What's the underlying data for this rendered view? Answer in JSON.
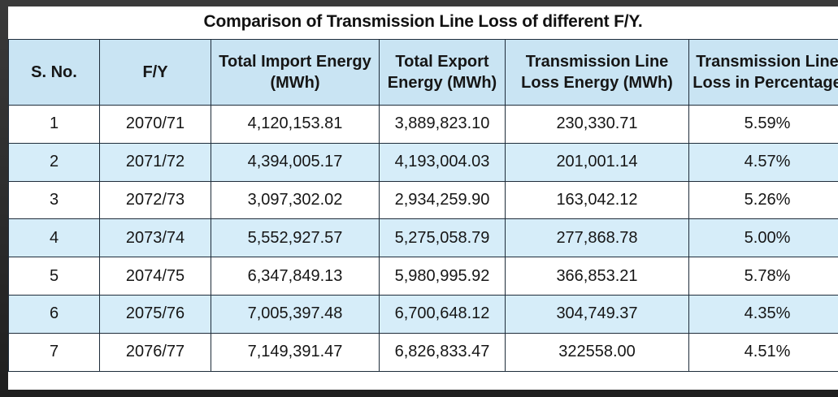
{
  "table": {
    "title": "Comparison of Transmission Line Loss of different F/Y.",
    "headers": [
      "S. No.",
      "F/Y",
      "Total Import Energy (MWh)",
      "Total Export Energy (MWh)",
      "Transmission Line Loss Energy (MWh)",
      "Transmission Line Loss in Percentage"
    ],
    "rows": [
      [
        "1",
        "2070/71",
        "4,120,153.81",
        "3,889,823.10",
        "230,330.71",
        "5.59%"
      ],
      [
        "2",
        "2071/72",
        "4,394,005.17",
        "4,193,004.03",
        "201,001.14",
        "4.57%"
      ],
      [
        "3",
        "2072/73",
        "3,097,302.02",
        "2,934,259.90",
        "163,042.12",
        "5.26%"
      ],
      [
        "4",
        "2073/74",
        "5,552,927.57",
        "5,275,058.79",
        "277,868.78",
        "5.00%"
      ],
      [
        "5",
        "2074/75",
        "6,347,849.13",
        "5,980,995.92",
        "366,853.21",
        "5.78%"
      ],
      [
        "6",
        "2075/76",
        "7,005,397.48",
        "6,700,648.12",
        "304,749.37",
        "4.35%"
      ],
      [
        "7",
        "2076/77",
        "7,149,391.47",
        "6,826,833.47",
        "322558.00",
        "4.51%"
      ]
    ]
  },
  "colors": {
    "header_bg": "#c9e4f3",
    "row_alt_bg": "#d6edf9",
    "border": "#1e2c3a",
    "frame_bg": "#2b2b2b"
  }
}
